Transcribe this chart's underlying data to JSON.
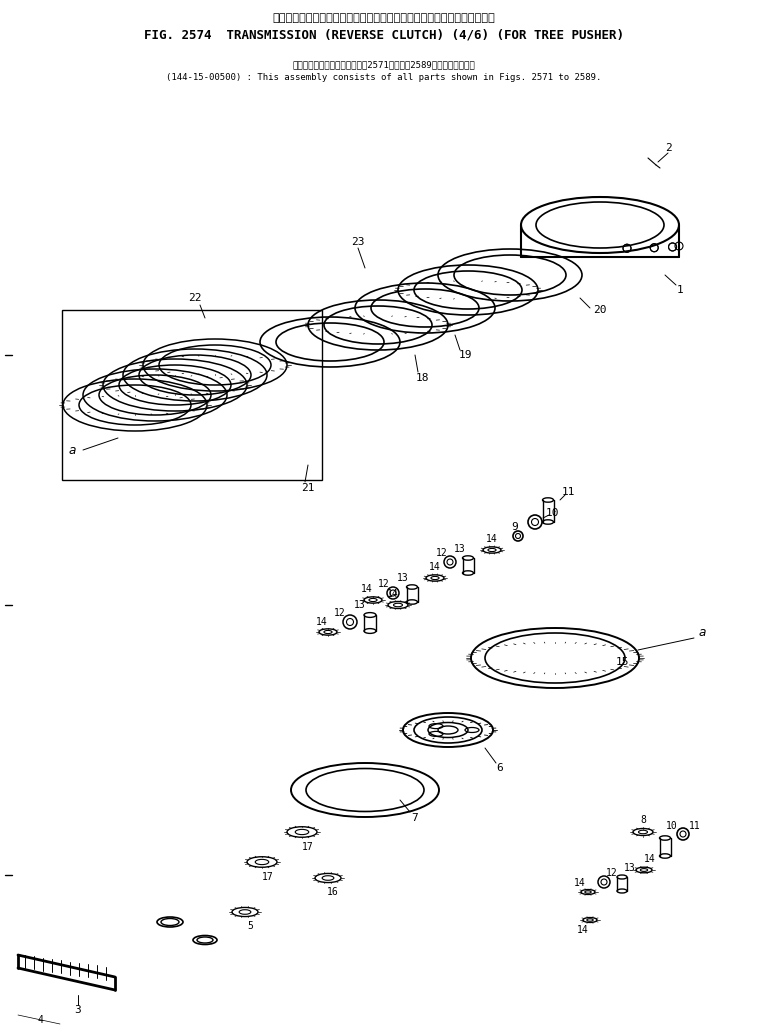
{
  "title_japanese": "トランスミッション　　後進　　クラッチ　　　　　　ツリープッシャ用",
  "title_english": "FIG. 2574  TRANSMISSION (REVERSE CLUTCH) (4/6) (FOR TREE PUSHER)",
  "subtitle_japanese": "このアセンブリの構成部品は図2571図から図2589図まで含みます．",
  "subtitle_english": "(144-15-00500) : This assembly consists of all parts shown in Figs. 2571 to 2589.",
  "bg_color": "#ffffff",
  "line_color": "#000000",
  "text_color": "#000000",
  "fig_width": 7.68,
  "fig_height": 10.29
}
